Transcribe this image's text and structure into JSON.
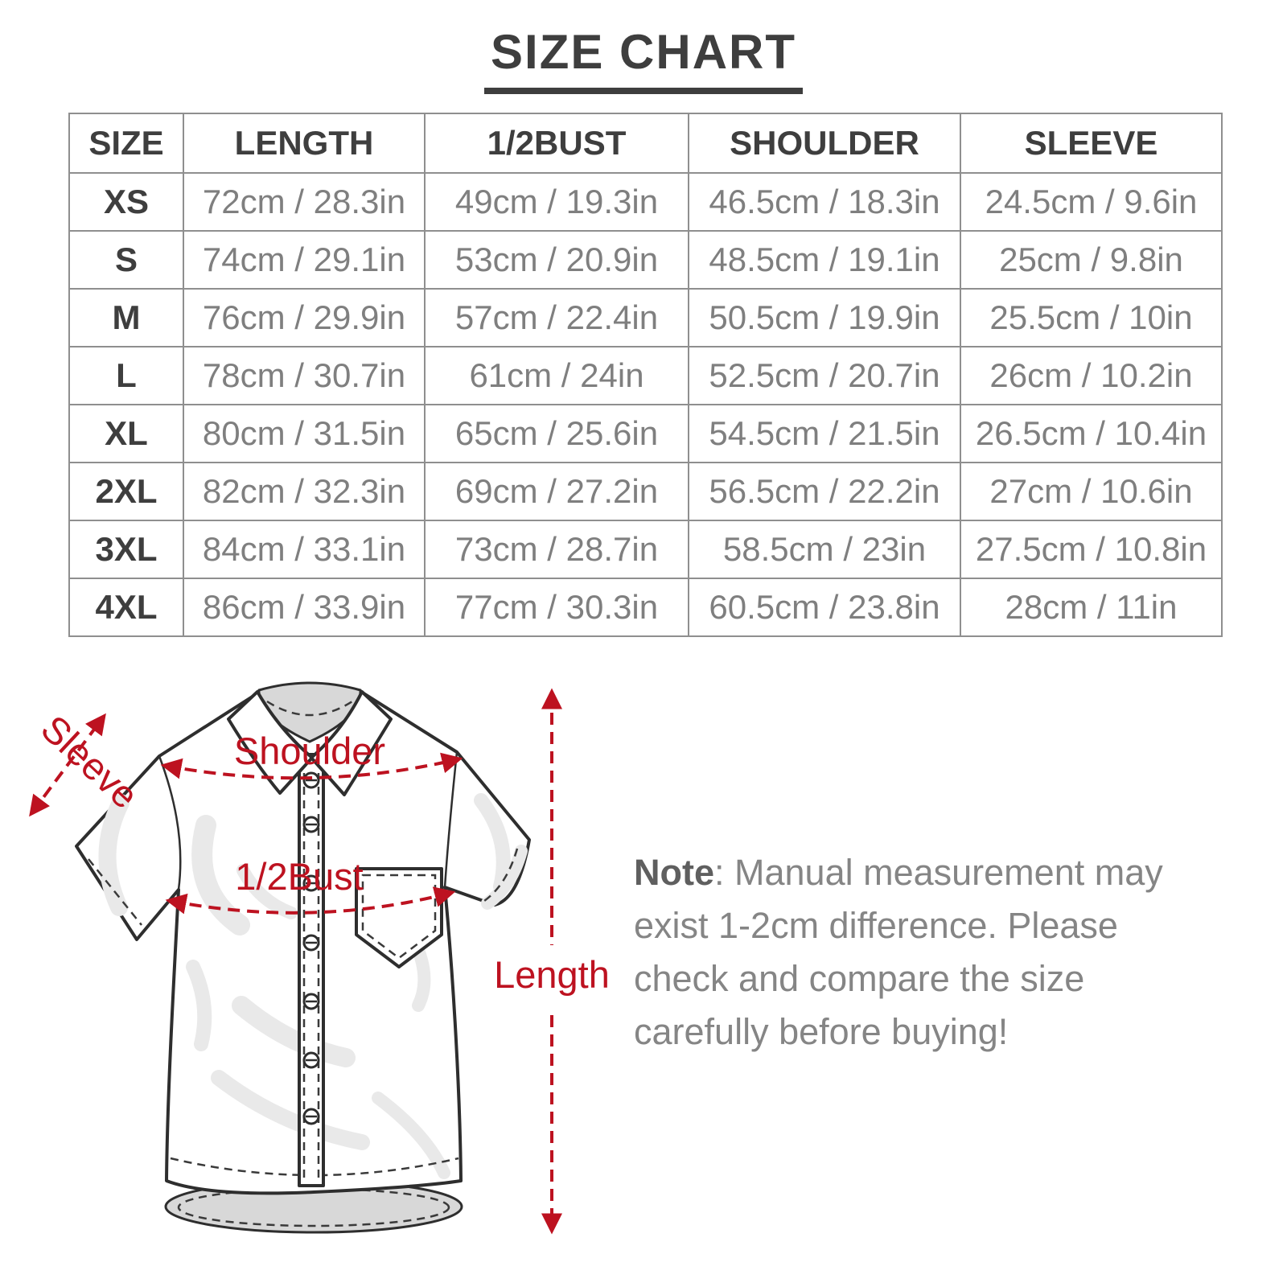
{
  "title": "SIZE CHART",
  "table": {
    "columns": [
      "SIZE",
      "LENGTH",
      "1/2BUST",
      "SHOULDER",
      "SLEEVE"
    ],
    "rows": [
      [
        "XS",
        "72cm / 28.3in",
        "49cm / 19.3in",
        "46.5cm / 18.3in",
        "24.5cm / 9.6in"
      ],
      [
        "S",
        "74cm / 29.1in",
        "53cm / 20.9in",
        "48.5cm / 19.1in",
        "25cm / 9.8in"
      ],
      [
        "M",
        "76cm / 29.9in",
        "57cm / 22.4in",
        "50.5cm / 19.9in",
        "25.5cm / 10in"
      ],
      [
        "L",
        "78cm / 30.7in",
        "61cm / 24in",
        "52.5cm / 20.7in",
        "26cm / 10.2in"
      ],
      [
        "XL",
        "80cm / 31.5in",
        "65cm / 25.6in",
        "54.5cm / 21.5in",
        "26.5cm / 10.4in"
      ],
      [
        "2XL",
        "82cm / 32.3in",
        "69cm / 27.2in",
        "56.5cm / 22.2in",
        "27cm / 10.6in"
      ],
      [
        "3XL",
        "84cm / 33.1in",
        "73cm / 28.7in",
        "58.5cm / 23in",
        "27.5cm / 10.8in"
      ],
      [
        "4XL",
        "86cm / 33.9in",
        "77cm / 30.3in",
        "60.5cm / 23.8in",
        "28cm / 11in"
      ]
    ]
  },
  "diagram": {
    "labels": {
      "sleeve": "Sleeve",
      "shoulder": "Shoulder",
      "half_bust": "1/2Bust",
      "length": "Length"
    }
  },
  "note": {
    "label": "Note",
    "body": ": Manual measurement may exist 1-2cm difference. Please check and compare the size carefully before buying!"
  },
  "colors": {
    "accent_red": "#bd1220",
    "title_text": "#3e3e3e",
    "table_border": "#8f8f8f",
    "table_value_text": "#7f7f7f",
    "note_text": "#858585"
  }
}
